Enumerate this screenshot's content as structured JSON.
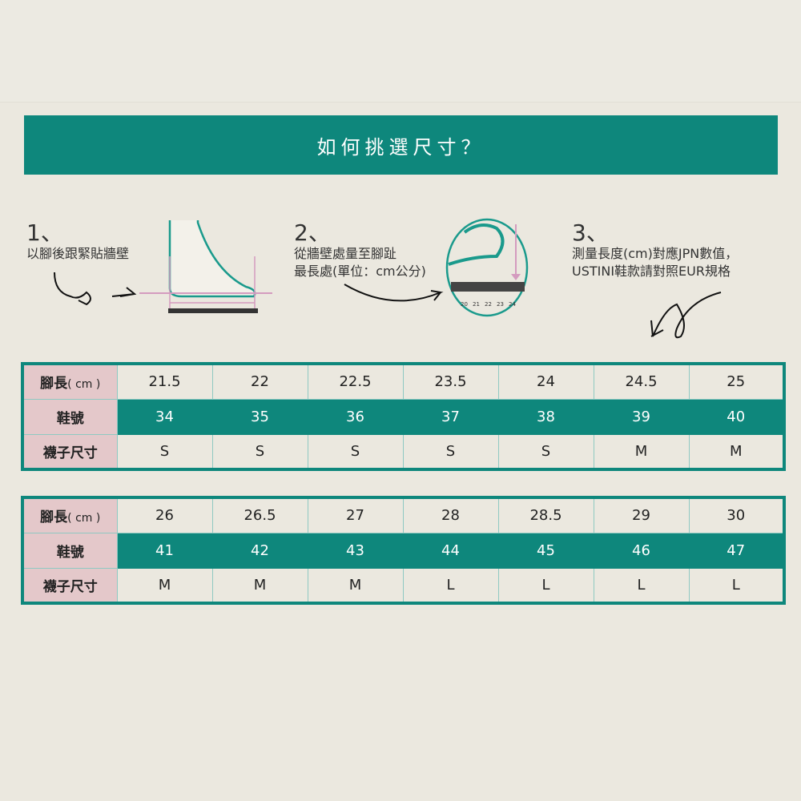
{
  "title": "如何挑選尺寸？",
  "steps": [
    {
      "num": "1、",
      "lines": [
        "以腳後跟緊貼牆壁"
      ]
    },
    {
      "num": "2、",
      "lines": [
        "從牆壁處量至腳趾",
        "最長處(單位：cm公分)"
      ]
    },
    {
      "num": "3、",
      "lines": [
        "測量長度(cm)對應JPN數值，",
        "USTINI鞋款請對照EUR規格"
      ]
    }
  ],
  "ruler_labels": [
    "20",
    "21",
    "22",
    "23",
    "24"
  ],
  "row_headers": {
    "foot_main": "腳長",
    "foot_unit": "( cm )",
    "shoe": "鞋號",
    "sock": "襪子尺寸"
  },
  "colors": {
    "teal": "#0e877c",
    "pink": "#e4c8ca",
    "background": "#ebe8df"
  },
  "tables": [
    {
      "foot": [
        "21.5",
        "22",
        "22.5",
        "23.5",
        "24",
        "24.5",
        "25"
      ],
      "shoe": [
        "34",
        "35",
        "36",
        "37",
        "38",
        "39",
        "40"
      ],
      "sock": [
        "S",
        "S",
        "S",
        "S",
        "S",
        "M",
        "M"
      ]
    },
    {
      "foot": [
        "26",
        "26.5",
        "27",
        "28",
        "28.5",
        "29",
        "30"
      ],
      "shoe": [
        "41",
        "42",
        "43",
        "44",
        "45",
        "46",
        "47"
      ],
      "sock": [
        "M",
        "M",
        "M",
        "L",
        "L",
        "L",
        "L"
      ]
    }
  ]
}
